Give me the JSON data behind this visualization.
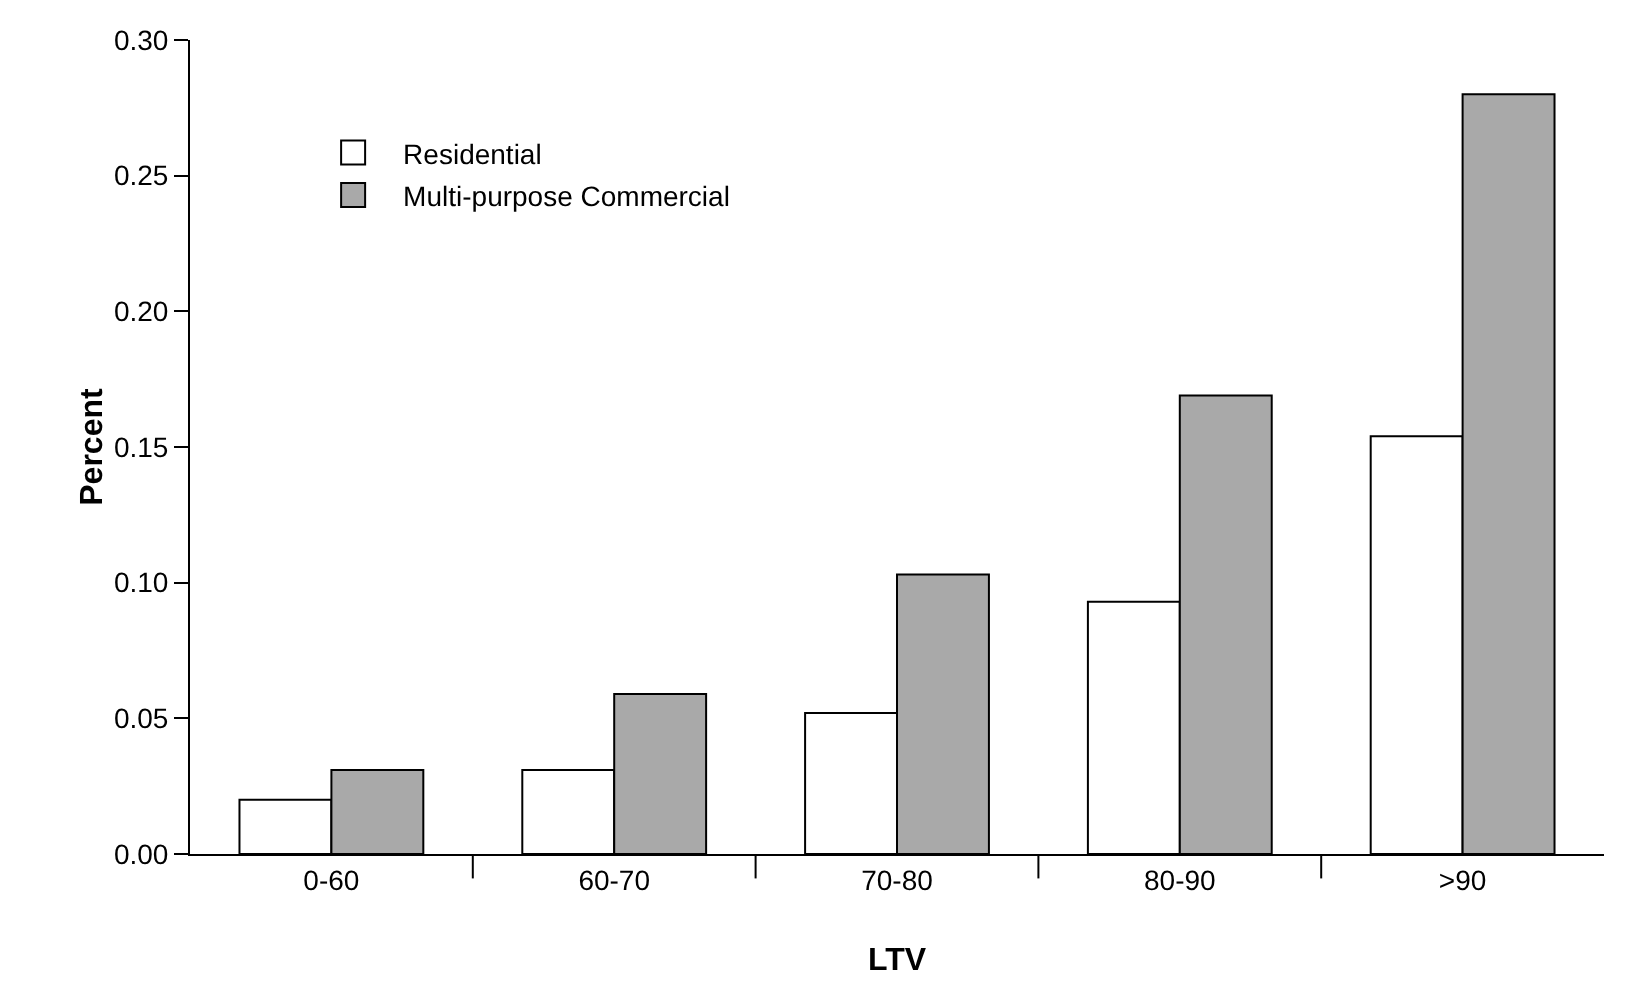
{
  "chart_data": {
    "type": "bar",
    "xlabel": "LTV",
    "ylabel": "Percent",
    "categories": [
      "0-60",
      "60-70",
      "70-80",
      "80-90",
      ">90"
    ],
    "series": [
      {
        "name": "Residential",
        "color": "#ffffff",
        "values": [
          0.02,
          0.031,
          0.052,
          0.093,
          0.154
        ]
      },
      {
        "name": "Multi-purpose Commercial",
        "color": "#a9a9a9",
        "values": [
          0.031,
          0.059,
          0.103,
          0.169,
          0.28
        ]
      }
    ],
    "ylim": [
      0,
      0.3
    ],
    "yticks": [
      {
        "value": 0,
        "label": "0.00"
      },
      {
        "value": 0.05,
        "label": "0.05"
      },
      {
        "value": 0.1,
        "label": "0.10"
      },
      {
        "value": 0.15,
        "label": "0.15"
      },
      {
        "value": 0.2,
        "label": "0.20"
      },
      {
        "value": 0.25,
        "label": "0.25"
      },
      {
        "value": 0.3,
        "label": "0.30"
      }
    ],
    "grid": false,
    "legend": "top left"
  }
}
